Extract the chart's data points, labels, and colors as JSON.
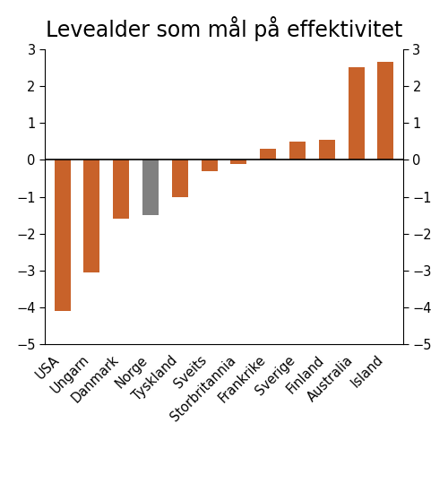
{
  "title": "Levealder som mål på effektivitet",
  "categories": [
    "USA",
    "Ungarn",
    "Danmark",
    "Norge",
    "Tyskland",
    "Sveits",
    "Storbritannia",
    "Frankrike",
    "Sverige",
    "Finland",
    "Australia",
    "Island"
  ],
  "values": [
    -4.1,
    -3.05,
    -1.6,
    -1.5,
    -1.0,
    -0.3,
    -0.1,
    0.3,
    0.5,
    0.55,
    2.5,
    2.65
  ],
  "colors": [
    "#c8622a",
    "#c8622a",
    "#c8622a",
    "#808080",
    "#c8622a",
    "#c8622a",
    "#c8622a",
    "#c8622a",
    "#c8622a",
    "#c8622a",
    "#c8622a",
    "#c8622a"
  ],
  "ylim": [
    -5,
    3
  ],
  "yticks": [
    -5,
    -4,
    -3,
    -2,
    -1,
    0,
    1,
    2,
    3
  ],
  "background_color": "#ffffff",
  "title_fontsize": 17,
  "tick_fontsize": 10.5,
  "bar_width": 0.55
}
